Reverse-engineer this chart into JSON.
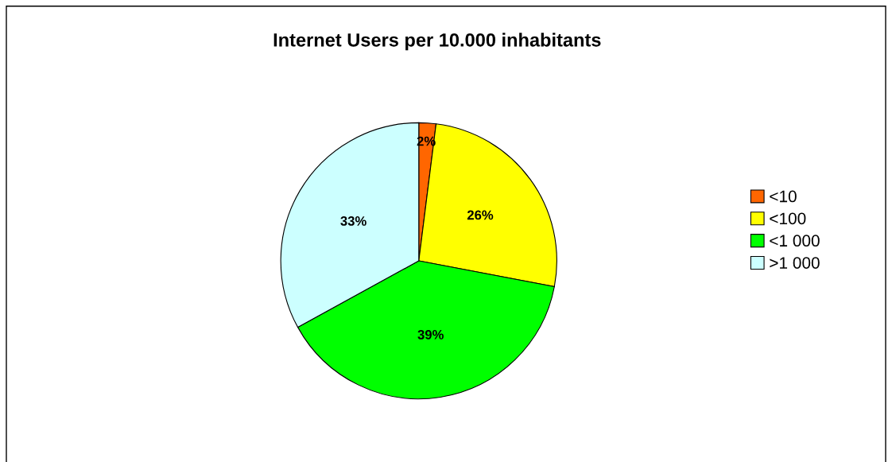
{
  "chart_data": {
    "type": "pie",
    "title": "Internet Users per 10.000 inhabitants",
    "categories": [
      "<10",
      "<100",
      "<1 000",
      ">1 000"
    ],
    "values": [
      2,
      26,
      39,
      33
    ],
    "colors": [
      "#ff6600",
      "#ffff00",
      "#00ff00",
      "#ccffff"
    ],
    "value_labels": [
      "2%",
      "26%",
      "39%",
      "33%"
    ],
    "legend": "right"
  }
}
